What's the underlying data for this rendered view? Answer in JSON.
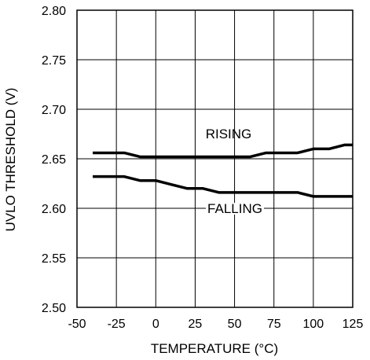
{
  "chart_data": {
    "type": "line",
    "title": "",
    "xlabel": "TEMPERATURE (°C)",
    "ylabel": "UVLO THRESHOLD (V)",
    "xlim": [
      -50,
      125
    ],
    "ylim": [
      2.5,
      2.8
    ],
    "xticks": [
      -50,
      -25,
      0,
      25,
      50,
      75,
      100,
      125
    ],
    "yticks": [
      2.5,
      2.55,
      2.6,
      2.65,
      2.7,
      2.75,
      2.8
    ],
    "xtick_labels": [
      "-50",
      "-25",
      "0",
      "25",
      "50",
      "75",
      "100",
      "125"
    ],
    "ytick_labels": [
      "2.50",
      "2.55",
      "2.60",
      "2.65",
      "2.70",
      "2.75",
      "2.80"
    ],
    "grid": true,
    "legend": "none",
    "series": [
      {
        "name": "RISING",
        "color": "#000000",
        "x": [
          -40,
          -20,
          -10,
          0,
          25,
          60,
          70,
          90,
          100,
          110,
          120,
          125
        ],
        "y": [
          2.656,
          2.656,
          2.652,
          2.652,
          2.652,
          2.652,
          2.656,
          2.656,
          2.66,
          2.66,
          2.664,
          2.664
        ]
      },
      {
        "name": "FALLING",
        "color": "#000000",
        "x": [
          -40,
          -20,
          -10,
          0,
          10,
          20,
          30,
          40,
          90,
          100,
          125
        ],
        "y": [
          2.632,
          2.632,
          2.628,
          2.628,
          2.624,
          2.62,
          2.62,
          2.616,
          2.616,
          2.612,
          2.612
        ]
      }
    ]
  }
}
